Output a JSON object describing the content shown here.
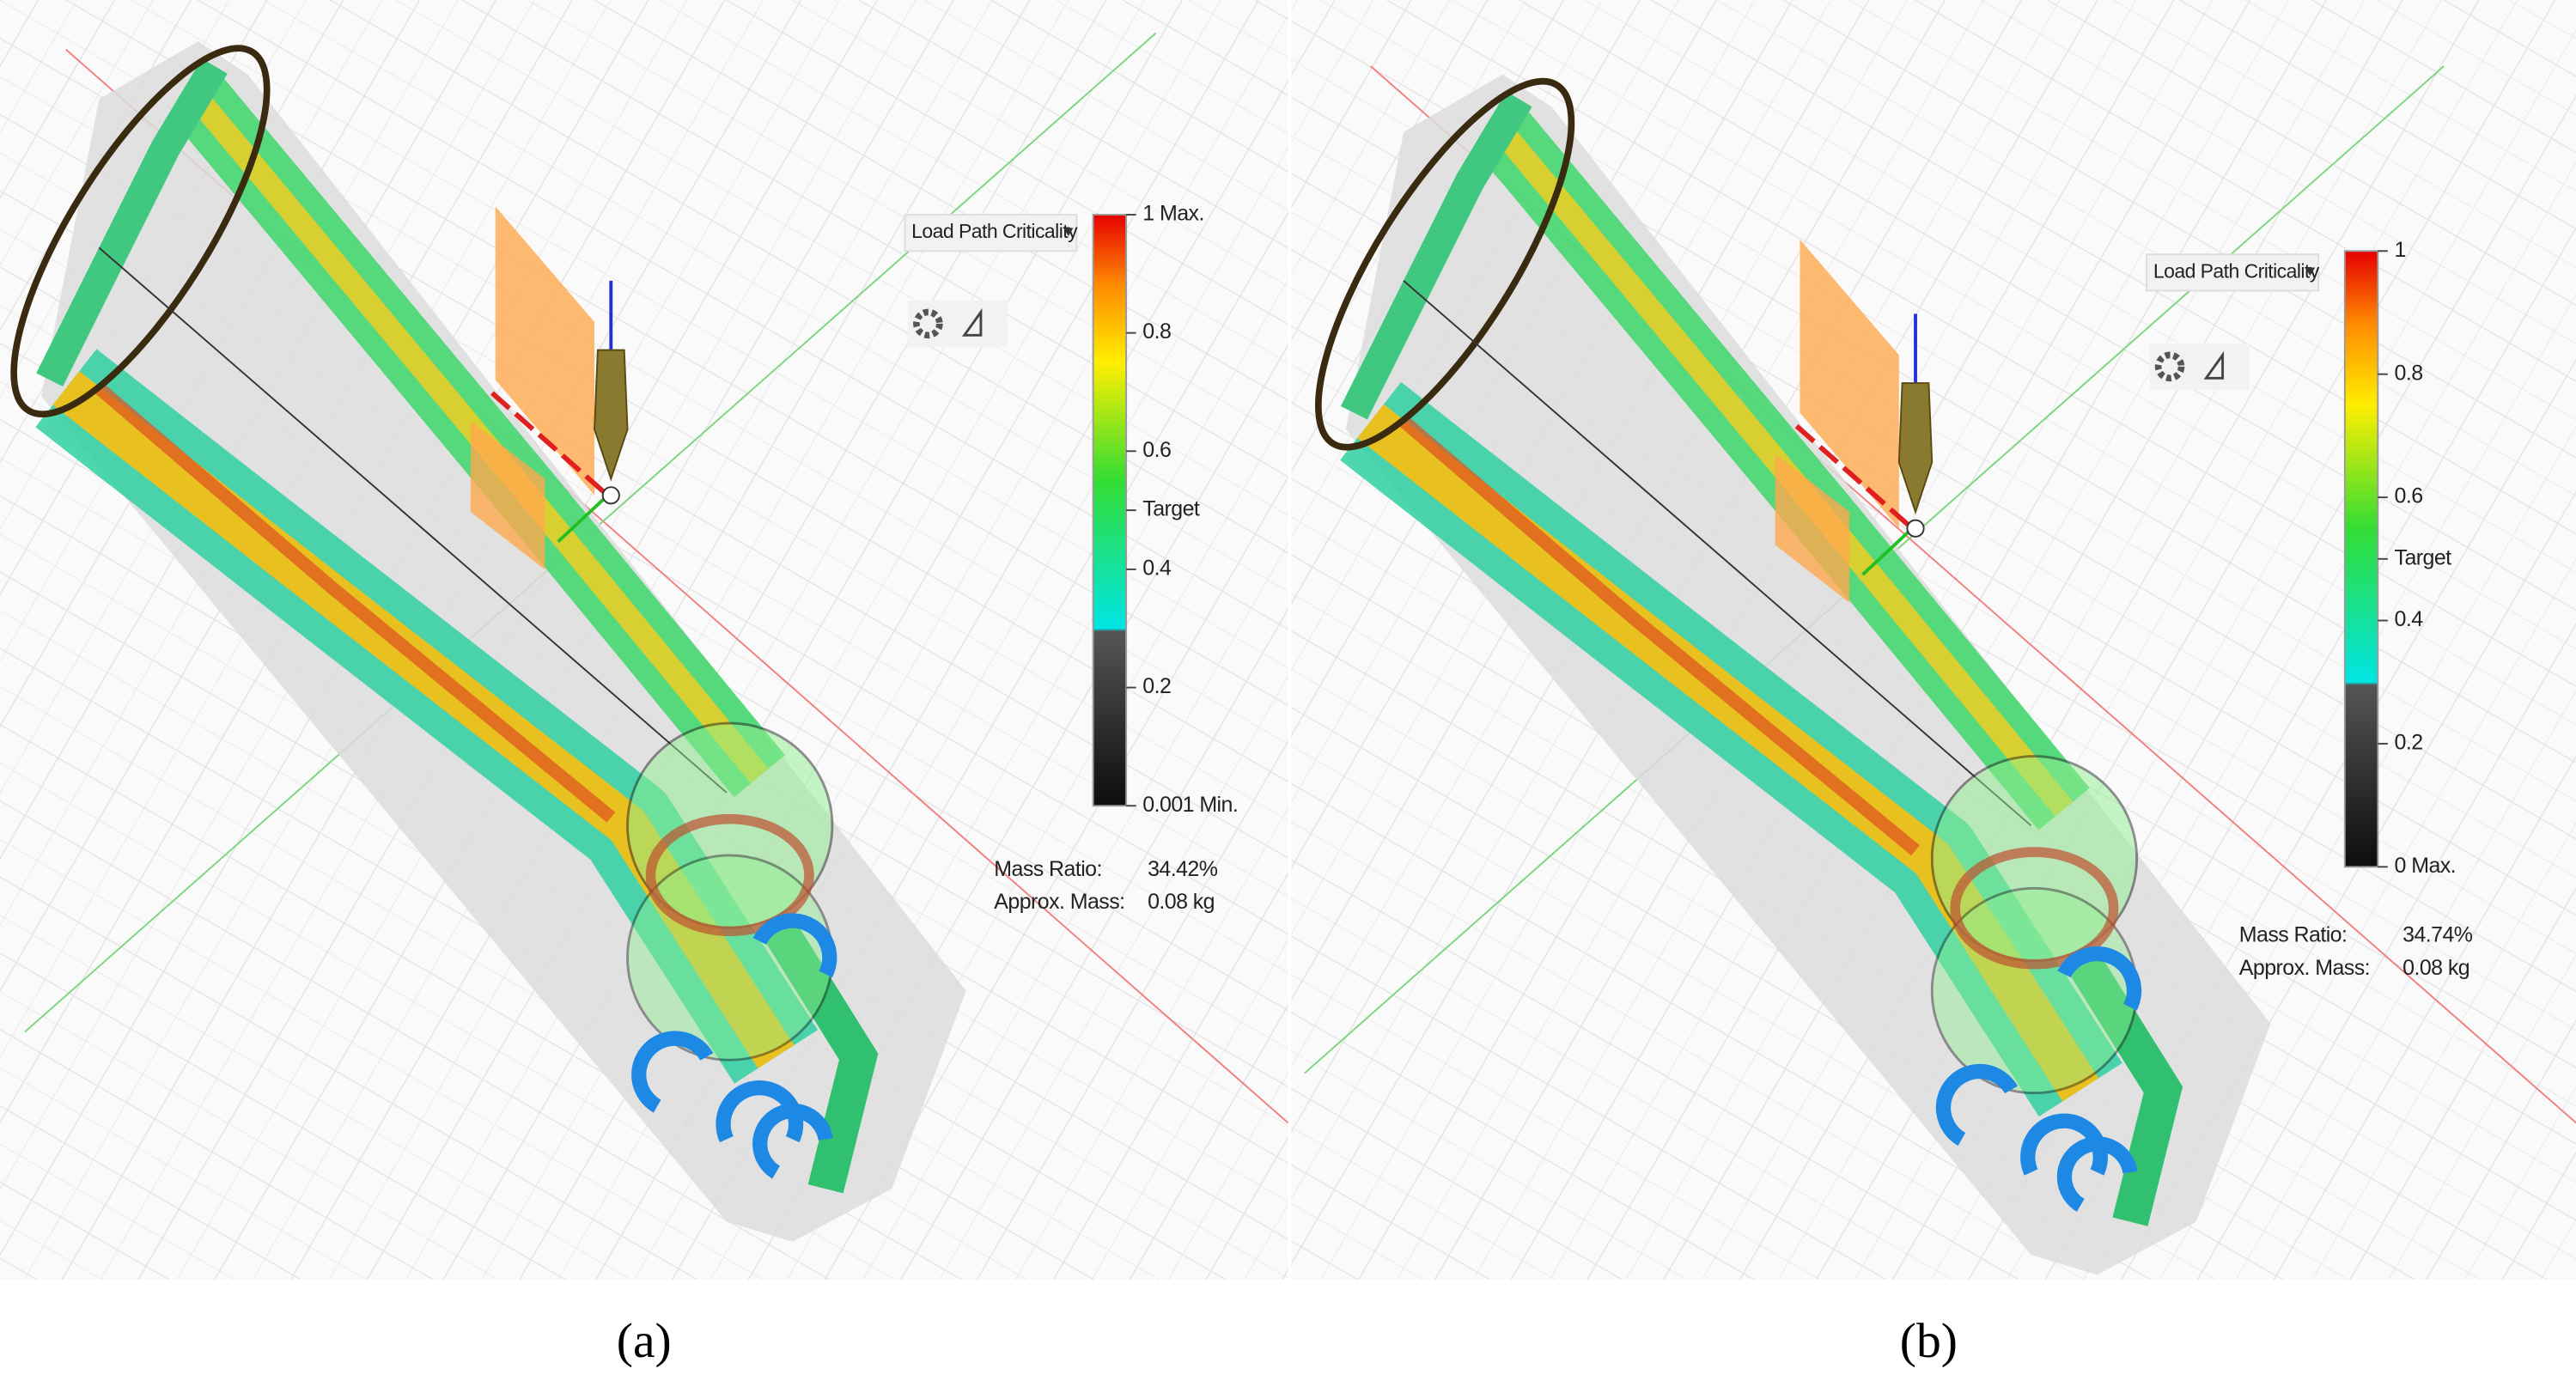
{
  "panels": [
    {
      "caption": "(a)",
      "dropdown": "Load Path Criticality",
      "colorbar_labels": [
        "1 Max.",
        "0.8",
        "0.6",
        "Target",
        "0.4",
        "0.2",
        "0.001 Min."
      ],
      "mass_ratio_label": "Mass Ratio:",
      "mass_ratio": "34.42%",
      "approx_mass_label": "Approx. Mass:",
      "approx_mass": "0.08 kg"
    },
    {
      "caption": "(b)",
      "dropdown": "Load Path Criticality",
      "colorbar_labels": [
        "1",
        "0.8",
        "0.6",
        "Target",
        "0.4",
        "0.2",
        "0 Max."
      ],
      "mass_ratio_label": "Mass Ratio:",
      "mass_ratio": "34.74%",
      "approx_mass_label": "Approx. Mass:",
      "approx_mass": "0.08 kg"
    }
  ]
}
